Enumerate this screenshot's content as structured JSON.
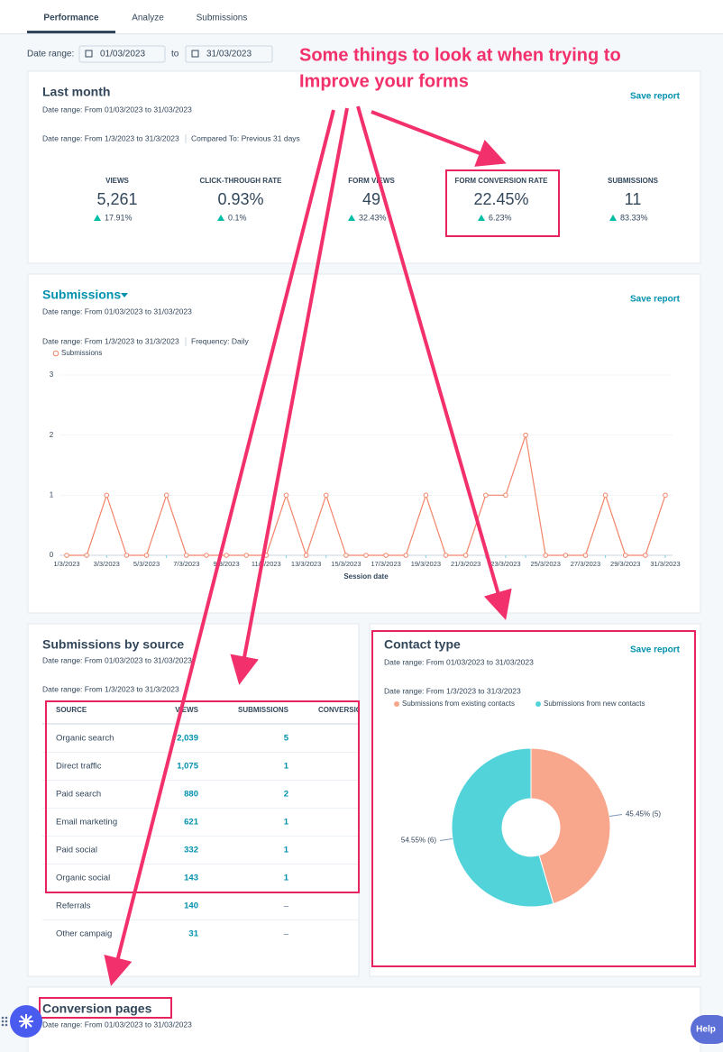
{
  "tabs": [
    "Performance",
    "Analyze",
    "Submissions"
  ],
  "date_filter": {
    "label": "Date range:",
    "from": "01/03/2023",
    "separator": "to",
    "to": "31/03/2023"
  },
  "annotation": {
    "lines": [
      "Some things to look at when trying to",
      "Improve your forms"
    ]
  },
  "last_month": {
    "title": "Last month",
    "action": "Save report",
    "date_range": "Date range: From 01/03/2023 to 31/03/2023",
    "filter_range": "Date range: From 1/3/2023 to 31/3/2023",
    "comparison": "Compared To: Previous 31 days",
    "kpis": [
      {
        "label": "VIEWS",
        "value": "5,261",
        "change": "17.91%"
      },
      {
        "label": "CLICK-THROUGH RATE",
        "value": "0.93%",
        "change": "0.1%"
      },
      {
        "label": "FORM VIEWS",
        "value": "49",
        "change": "32.43%"
      },
      {
        "label": "FORM CONVERSION RATE",
        "value": "22.45%",
        "change": "6.23%"
      },
      {
        "label": "SUBMISSIONS",
        "value": "11",
        "change": "83.33%"
      }
    ]
  },
  "submissions": {
    "title": "Submissions",
    "action": "Save report",
    "date_range": "Date range: From 01/03/2023 to 31/03/2023",
    "filter_range": "Date range: From 1/3/2023 to 31/3/2023",
    "frequency": "Frequency: Daily",
    "chart": {
      "type": "line",
      "x_label": "Session date",
      "categories": [
        "1/3/2023",
        null,
        "3/3/2023",
        null,
        "5/3/2023",
        null,
        "7/3/2023",
        null,
        "9/3/2023",
        null,
        "11/3/2023",
        null,
        "13/3/2023",
        null,
        "15/3/2023",
        null,
        "17/3/2023",
        null,
        "19/3/2023",
        null,
        "21/3/2023",
        null,
        "23/3/2023",
        null,
        "25/3/2023",
        null,
        "27/3/2023",
        null,
        "29/3/2023",
        null,
        "31/3/2023"
      ],
      "series": [
        {
          "name": "Submissions",
          "color": "#f2856a",
          "values": [
            0,
            0,
            1,
            0,
            0,
            1,
            0,
            0,
            0,
            0,
            0,
            1,
            0,
            1,
            0,
            0,
            0,
            0,
            1,
            0,
            0,
            1,
            1,
            2,
            0,
            0,
            0,
            1,
            0,
            0,
            1
          ]
        }
      ],
      "ylim": [
        0,
        3
      ],
      "yticks": [
        0,
        1,
        2,
        3
      ],
      "grid": true
    }
  },
  "by_source": {
    "title": "Submissions by source",
    "date_range": "Date range: From 01/03/2023 to 31/03/2023",
    "filter_range": "Date range: From 1/3/2023 to 31/3/2023",
    "table": {
      "columns": [
        "SOURCE",
        "VIEWS",
        "SUBMISSIONS",
        "CONVERSION RATE"
      ],
      "rows": [
        [
          "Organic search",
          "2,039",
          "5"
        ],
        [
          "Direct traffic",
          "1,075",
          "1"
        ],
        [
          "Paid search",
          "880",
          "2"
        ],
        [
          "Email marketing",
          "621",
          "1"
        ],
        [
          "Paid social",
          "332",
          "1"
        ],
        [
          "Organic social",
          "143",
          "1"
        ],
        [
          "Referrals",
          "140",
          "–"
        ],
        [
          "Other campaig",
          "31",
          "–"
        ]
      ]
    }
  },
  "contact_type": {
    "title": "Contact type",
    "action": "Save report",
    "date_range": "Date range: From 01/03/2023 to 31/03/2023",
    "filter_range": "Date range: From 1/3/2023 to 31/3/2023",
    "chart": {
      "type": "pie",
      "donut": true,
      "categories": [
        "Submissions from existing contacts",
        "Submissions from new contacts"
      ],
      "values": [
        45.45,
        54.55
      ],
      "value_labels": [
        "45.45% (5)",
        "54.55% (6)"
      ],
      "colors": [
        "#f8a78d",
        "#51d3d9"
      ]
    }
  },
  "conversion_pages": {
    "title": "Conversion pages",
    "date_range": "Date range: From 01/03/2023 to 31/03/2023"
  },
  "help": "Help"
}
